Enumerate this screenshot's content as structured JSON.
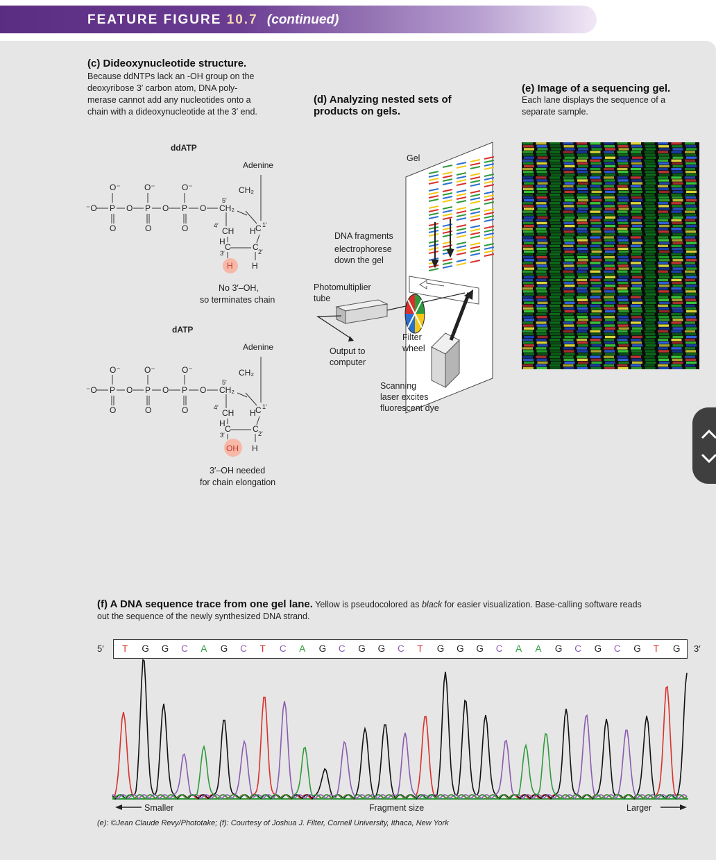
{
  "header": {
    "prefix": "FEATURE FIGURE",
    "number": "10.7",
    "continued": "(continued)"
  },
  "panel_c": {
    "title": "(c) Dideoxynucleotide structure.",
    "body": [
      "Because ddNTPs lack an -OH group on the",
      "deoxyribose 3′ carbon atom, DNA poly-",
      "merase cannot add any nucleotides onto a",
      "chain with a dideoxynucleotide at the 3′ end."
    ],
    "ddatp": {
      "name": "ddATP",
      "base": "Adenine",
      "highlight": "H",
      "note1": "No 3′–OH,",
      "note2": "so terminates chain"
    },
    "datp": {
      "name": "dATP",
      "base": "Adenine",
      "highlight": "OH",
      "note1": "3′–OH needed",
      "note2": "for chain elongation"
    },
    "atoms": {
      "o": "O",
      "o_minus": "O⁻",
      "neg_o": "⁻O",
      "p": "P",
      "ch2": "CH₂",
      "ch2_prime": "CH₂",
      "h": "H",
      "c": "C",
      "ch": "CH",
      "p5": "5′",
      "p4": "4′",
      "p3": "3′",
      "p2": "2′",
      "p1": "1′"
    }
  },
  "panel_d": {
    "title1": "(d) Analyzing nested sets of",
    "title2": "products on gels.",
    "gel_label": "Gel",
    "fragments": [
      "DNA fragments",
      "electrophorese",
      "down the gel"
    ],
    "pmt": [
      "Photomultiplier",
      "tube"
    ],
    "output": [
      "Output to",
      "computer"
    ],
    "filter": [
      "Filter",
      "wheel"
    ],
    "laser": [
      "Scanning",
      "laser excites",
      "fluorescent dye"
    ]
  },
  "panel_e": {
    "title": "(e) Image of a sequencing gel.",
    "body": [
      "Each lane displays the sequence of a",
      "separate sample."
    ]
  },
  "panel_f": {
    "title": "(f) A DNA sequence trace from one gel lane.",
    "body_a": " Yellow is pseudocolored as ",
    "body_em": "black",
    "body_b": " for easier visualization. Base-calling software reads",
    "body_line2": "out the sequence of the newly synthesized DNA strand.",
    "five_prime": "5′",
    "three_prime": "3′",
    "sequence": [
      "T",
      "G",
      "G",
      "C",
      "A",
      "G",
      "C",
      "T",
      "C",
      "A",
      "G",
      "C",
      "G",
      "G",
      "C",
      "T",
      "G",
      "G",
      "G",
      "C",
      "A",
      "A",
      "G",
      "C",
      "G",
      "C",
      "G",
      "T",
      "G"
    ],
    "base_colors": {
      "T": "#d9302b",
      "G": "#222222",
      "C": "#8a5bb0",
      "A": "#2e9a3a"
    },
    "axis_left": "Smaller",
    "axis_mid": "Fragment size",
    "axis_right": "Larger"
  },
  "credit": "(e): ©Jean Claude Revy/Phototake; (f): Courtesy of Joshua J. Filter, Cornell University, Ithaca, New York",
  "scroll": {
    "up_icon": "chevron-up-icon",
    "down_icon": "chevron-down-icon"
  }
}
